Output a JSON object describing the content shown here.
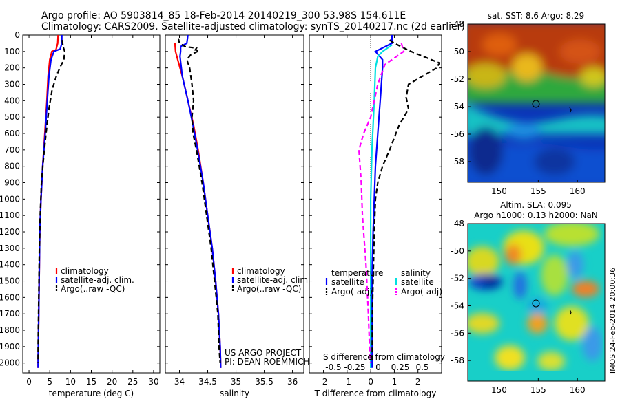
{
  "header": {
    "line1": "Argo profile: AO 5903814_85 18-Feb-2014 20140219_300 53.98S 154.611E",
    "line2": "Climatology: CARS2009. Satellite-adjusted climatology: synTS_20140217.nc (2d earlier)"
  },
  "chart_data": [
    {
      "type": "line",
      "xlabel": "temperature (deg C)",
      "xlim": [
        -1.5,
        31.5
      ],
      "xticks": [
        0,
        5,
        10,
        15,
        20,
        25,
        30
      ],
      "ylim": [
        2060,
        0
      ],
      "yticks": [
        0,
        100,
        200,
        300,
        400,
        500,
        600,
        700,
        800,
        900,
        1000,
        1100,
        1200,
        1300,
        1400,
        1500,
        1600,
        1700,
        1800,
        1900,
        2000
      ],
      "legend": [
        "climatology",
        "satellite-adj. clim.",
        "Argo(..raw -QC)"
      ],
      "series": [
        {
          "name": "climatology",
          "color": "#ff0000",
          "style": "solid",
          "points": [
            [
              7.0,
              0
            ],
            [
              6.9,
              50
            ],
            [
              6.5,
              90
            ],
            [
              5.5,
              100
            ],
            [
              5.0,
              150
            ],
            [
              4.6,
              250
            ],
            [
              4.3,
              400
            ],
            [
              3.8,
              600
            ],
            [
              3.3,
              800
            ],
            [
              2.9,
              1000
            ],
            [
              2.6,
              1200
            ],
            [
              2.5,
              1400
            ],
            [
              2.4,
              1600
            ],
            [
              2.3,
              1800
            ],
            [
              2.2,
              2000
            ],
            [
              2.2,
              2030
            ]
          ]
        },
        {
          "name": "satellite-adj. clim.",
          "color": "#0000ff",
          "style": "solid",
          "points": [
            [
              7.9,
              0
            ],
            [
              7.9,
              50
            ],
            [
              7.5,
              85
            ],
            [
              6.0,
              100
            ],
            [
              5.3,
              150
            ],
            [
              4.8,
              250
            ],
            [
              4.4,
              400
            ],
            [
              3.9,
              600
            ],
            [
              3.3,
              800
            ],
            [
              2.9,
              1000
            ],
            [
              2.6,
              1200
            ],
            [
              2.5,
              1400
            ],
            [
              2.4,
              1600
            ],
            [
              2.3,
              1800
            ],
            [
              2.2,
              2000
            ],
            [
              2.2,
              2030
            ]
          ]
        },
        {
          "name": "Argo(..raw -QC)",
          "color": "#000000",
          "style": "dash",
          "points": [
            [
              8.0,
              30
            ],
            [
              8.2,
              70
            ],
            [
              8.6,
              100
            ],
            [
              8.4,
              150
            ],
            [
              7.4,
              200
            ],
            [
              6.6,
              250
            ],
            [
              5.6,
              330
            ],
            [
              4.8,
              450
            ],
            [
              4.1,
              600
            ],
            [
              3.5,
              750
            ],
            [
              3.0,
              900
            ],
            [
              2.7,
              1100
            ],
            [
              2.5,
              1300
            ],
            [
              2.4,
              1500
            ],
            [
              2.3,
              1700
            ],
            [
              2.2,
              1900
            ],
            [
              2.2,
              2000
            ]
          ]
        }
      ]
    },
    {
      "type": "line",
      "xlabel": "salinity",
      "xlim": [
        33.75,
        36.2
      ],
      "xticks": [
        34,
        34.5,
        35,
        35.5,
        36
      ],
      "xticklabels": [
        "34",
        "34.5",
        "35",
        "35.5",
        "36"
      ],
      "ylim": [
        2060,
        0
      ],
      "legend": [
        "climatology",
        "satellite-adj. clim.",
        "Argo(..raw -QC)"
      ],
      "annotations": [
        "US ARGO PROJECT",
        "PI: DEAN ROEMMICH"
      ],
      "series": [
        {
          "name": "climatology",
          "color": "#ff0000",
          "style": "solid",
          "points": [
            [
              33.92,
              50
            ],
            [
              33.93,
              100
            ],
            [
              33.97,
              150
            ],
            [
              34.05,
              250
            ],
            [
              34.15,
              400
            ],
            [
              34.25,
              550
            ],
            [
              34.33,
              700
            ],
            [
              34.42,
              900
            ],
            [
              34.5,
              1100
            ],
            [
              34.58,
              1300
            ],
            [
              34.64,
              1500
            ],
            [
              34.69,
              1700
            ],
            [
              34.72,
              1900
            ],
            [
              34.73,
              2030
            ]
          ]
        },
        {
          "name": "satellite-adj. clim.",
          "color": "#0000ff",
          "style": "solid",
          "points": [
            [
              34.15,
              0
            ],
            [
              34.13,
              50
            ],
            [
              34.02,
              70
            ],
            [
              34.02,
              100
            ],
            [
              34.01,
              130
            ],
            [
              34.05,
              250
            ],
            [
              34.15,
              400
            ],
            [
              34.24,
              550
            ],
            [
              34.32,
              700
            ],
            [
              34.42,
              900
            ],
            [
              34.5,
              1100
            ],
            [
              34.58,
              1300
            ],
            [
              34.64,
              1500
            ],
            [
              34.69,
              1700
            ],
            [
              34.72,
              1900
            ],
            [
              34.73,
              2030
            ]
          ]
        },
        {
          "name": "Argo(..raw -QC)",
          "color": "#000000",
          "style": "dash",
          "points": [
            [
              33.98,
              20
            ],
            [
              34.0,
              50
            ],
            [
              34.1,
              70
            ],
            [
              34.3,
              80
            ],
            [
              34.28,
              90
            ],
            [
              34.35,
              95
            ],
            [
              34.2,
              120
            ],
            [
              34.13,
              150
            ],
            [
              34.18,
              200
            ],
            [
              34.22,
              300
            ],
            [
              34.25,
              400
            ],
            [
              34.22,
              500
            ],
            [
              34.24,
              600
            ],
            [
              34.3,
              700
            ],
            [
              34.4,
              900
            ],
            [
              34.48,
              1100
            ],
            [
              34.56,
              1300
            ],
            [
              34.62,
              1500
            ],
            [
              34.68,
              1700
            ],
            [
              34.7,
              1900
            ],
            [
              34.72,
              2000
            ]
          ]
        }
      ]
    },
    {
      "type": "line",
      "xlabel": "T difference from climatology",
      "xlabel_top": "S difference from climatology",
      "xlim": [
        -2.6,
        3.0
      ],
      "xticks": [
        -2,
        -1,
        0,
        1,
        2
      ],
      "xticklabels": [
        "-2",
        "-1",
        "0",
        "1",
        "2"
      ],
      "s_ticklabels": [
        "-0.5",
        "-0.25",
        "0",
        "0.25",
        "0.5"
      ],
      "ylim": [
        2060,
        0
      ],
      "legend_left": {
        "title": "temperature",
        "items": [
          "satellite",
          "Argo(-adj)"
        ]
      },
      "legend_right": {
        "title": "salinity",
        "items": [
          "satellite",
          "Argo(-adj)"
        ]
      },
      "series": [
        {
          "name": "satellite",
          "group": "temperature",
          "color": "#0000ff",
          "style": "solid",
          "points": [
            [
              0.9,
              0
            ],
            [
              0.9,
              50
            ],
            [
              0.2,
              100
            ],
            [
              0.5,
              150
            ],
            [
              0.5,
              200
            ],
            [
              0.45,
              300
            ],
            [
              0.4,
              400
            ],
            [
              0.35,
              500
            ],
            [
              0.3,
              600
            ],
            [
              0.25,
              700
            ],
            [
              0.2,
              800
            ],
            [
              0.15,
              1000
            ],
            [
              0.1,
              1200
            ],
            [
              0.05,
              1500
            ],
            [
              0.05,
              1800
            ],
            [
              0.05,
              2030
            ]
          ]
        },
        {
          "name": "Argo(-adj)",
          "group": "temperature",
          "color": "#000000",
          "style": "dash",
          "points": [
            [
              0.8,
              30
            ],
            [
              1.0,
              50
            ],
            [
              1.7,
              100
            ],
            [
              2.4,
              140
            ],
            [
              2.9,
              170
            ],
            [
              2.8,
              200
            ],
            [
              2.2,
              250
            ],
            [
              1.6,
              300
            ],
            [
              1.5,
              380
            ],
            [
              1.6,
              450
            ],
            [
              1.2,
              550
            ],
            [
              0.8,
              700
            ],
            [
              0.5,
              800
            ],
            [
              0.3,
              900
            ],
            [
              0.2,
              1000
            ],
            [
              0.15,
              1200
            ],
            [
              0.1,
              1500
            ],
            [
              0.05,
              1800
            ],
            [
              0.05,
              2000
            ]
          ]
        },
        {
          "name": "satellite",
          "group": "salinity",
          "color": "#00e0e0",
          "style": "solid",
          "points": [
            [
              0.9,
              60
            ],
            [
              0.5,
              100
            ],
            [
              0.3,
              130
            ],
            [
              0.2,
              200
            ],
            [
              0.15,
              400
            ],
            [
              0.05,
              700
            ],
            [
              0.0,
              1000
            ],
            [
              0.0,
              1400
            ],
            [
              0.0,
              2030
            ]
          ]
        },
        {
          "name": "Argo(-adj)",
          "group": "salinity",
          "color": "#ff00ff",
          "style": "dash",
          "points": [
            [
              1.3,
              50
            ],
            [
              1.4,
              100
            ],
            [
              0.9,
              150
            ],
            [
              0.6,
              180
            ],
            [
              0.3,
              300
            ],
            [
              0.0,
              500
            ],
            [
              -0.3,
              600
            ],
            [
              -0.5,
              700
            ],
            [
              -0.45,
              800
            ],
            [
              -0.4,
              900
            ],
            [
              -0.35,
              1100
            ],
            [
              -0.2,
              1400
            ],
            [
              -0.1,
              1700
            ],
            [
              -0.05,
              1900
            ],
            [
              0.0,
              2000
            ]
          ]
        }
      ]
    },
    {
      "type": "heatmap",
      "title": "sat. SST: 8.6 Argo: 8.29",
      "xlim": [
        146,
        163.5
      ],
      "ylim": [
        -59.5,
        -48
      ],
      "xticks": [
        150,
        155,
        160
      ],
      "yticks": [
        -48,
        -50,
        -52,
        -54,
        -56,
        -58
      ],
      "marker": [
        154.6,
        -54
      ]
    },
    {
      "type": "heatmap",
      "title": "Altim. SLA: 0.095",
      "subtitle": "Argo h1000: 0.13 h2000: NaN",
      "xlim": [
        146,
        163.5
      ],
      "ylim": [
        -59.5,
        -48
      ],
      "xticks": [
        150,
        155,
        160
      ],
      "yticks": [
        -48,
        -50,
        -52,
        -54,
        -56,
        -58
      ],
      "marker": [
        154.6,
        -54
      ],
      "side_text": "IMOS 24-Feb-2014 20:00:36"
    }
  ]
}
